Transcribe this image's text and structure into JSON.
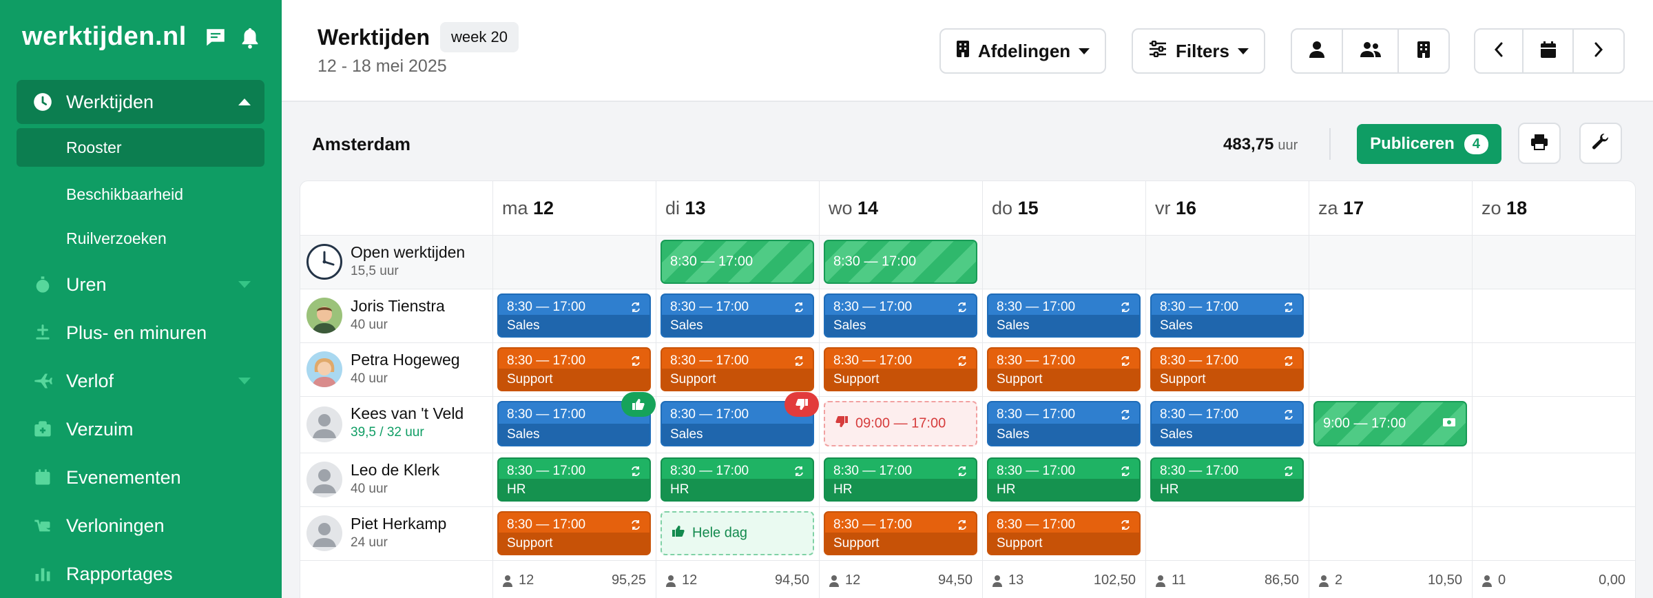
{
  "app": {
    "logo": "werktijden.nl"
  },
  "sidebar": {
    "items": [
      {
        "label": "Werktijden",
        "icon": "clock-icon",
        "active": true
      },
      {
        "label": "Uren",
        "icon": "stopwatch-icon"
      },
      {
        "label": "Plus- en minuren",
        "icon": "plus-minus-icon"
      },
      {
        "label": "Verlof",
        "icon": "plane-icon"
      },
      {
        "label": "Verzuim",
        "icon": "medkit-icon"
      },
      {
        "label": "Evenementen",
        "icon": "calendar-icon"
      },
      {
        "label": "Verloningen",
        "icon": "money-icon"
      },
      {
        "label": "Rapportages",
        "icon": "chart-icon"
      }
    ],
    "subitems": [
      {
        "label": "Rooster",
        "active": true
      },
      {
        "label": "Beschikbaarheid"
      },
      {
        "label": "Ruilverzoeken"
      }
    ]
  },
  "header": {
    "title": "Werktijden",
    "week_badge": "week 20",
    "date_range": "12 - 18 mei 2025",
    "departments_label": "Afdelingen",
    "filters_label": "Filters"
  },
  "toolbar": {
    "location": "Amsterdam",
    "total_hours": "483,75",
    "total_unit": "uur",
    "publish_label": "Publiceren",
    "publish_count": "4"
  },
  "days": [
    {
      "dow": "ma",
      "num": "12"
    },
    {
      "dow": "di",
      "num": "13"
    },
    {
      "dow": "wo",
      "num": "14"
    },
    {
      "dow": "do",
      "num": "15"
    },
    {
      "dow": "vr",
      "num": "16"
    },
    {
      "dow": "za",
      "num": "17"
    },
    {
      "dow": "zo",
      "num": "18"
    }
  ],
  "rows": [
    {
      "name": "Open werktijden",
      "hours": "15,5 uur"
    },
    {
      "name": "Joris Tienstra",
      "hours": "40 uur"
    },
    {
      "name": "Petra Hogeweg",
      "hours": "40 uur"
    },
    {
      "name": "Kees van 't Veld",
      "hours": "39,5 / 32 uur"
    },
    {
      "name": "Leo de Klerk",
      "hours": "40 uur"
    },
    {
      "name": "Piet Herkamp",
      "hours": "24 uur"
    }
  ],
  "shifts": {
    "standard_time": "8:30 — 17:00",
    "declined_time": "09:00 — 17:00",
    "weekend_time": "9:00 — 17:00",
    "available_label": "Hele dag",
    "dept_sales": "Sales",
    "dept_support": "Support",
    "dept_hr": "HR"
  },
  "footer": [
    {
      "people": "12",
      "hours": "95,25"
    },
    {
      "people": "12",
      "hours": "94,50"
    },
    {
      "people": "12",
      "hours": "94,50"
    },
    {
      "people": "13",
      "hours": "102,50"
    },
    {
      "people": "11",
      "hours": "86,50"
    },
    {
      "people": "2",
      "hours": "10,50"
    },
    {
      "people": "0",
      "hours": "0,00"
    }
  ],
  "colors": {
    "brand": "#0f9d64",
    "sales": "#2f7fcf",
    "support": "#e5610d",
    "hr": "#1fb364",
    "declined": "#d63c3c"
  }
}
